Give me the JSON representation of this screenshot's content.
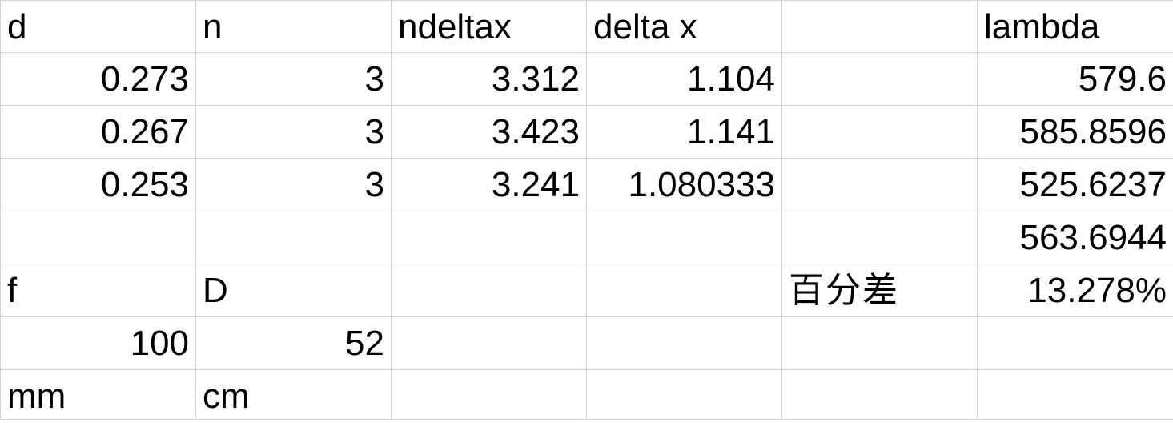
{
  "header": {
    "c1": "d",
    "c2": "n",
    "c3": "ndeltax",
    "c4": "delta x",
    "c5": "",
    "c6": "lambda"
  },
  "rows": [
    {
      "d": "0.273",
      "n": "3",
      "ndeltax": "3.312",
      "deltax": "1.104",
      "lambda": "579.6"
    },
    {
      "d": "0.267",
      "n": "3",
      "ndeltax": "3.423",
      "deltax": "1.141",
      "lambda": "585.8596"
    },
    {
      "d": "0.253",
      "n": "3",
      "ndeltax": "3.241",
      "deltax": "1.080333",
      "lambda": "525.6237"
    }
  ],
  "average": {
    "lambda": "563.6944"
  },
  "params": {
    "f_label": "f",
    "D_label": "D",
    "diff_label": "百分差",
    "diff_value": "13.278%",
    "f_value": "100",
    "D_value": "52",
    "f_unit": "mm",
    "D_unit": "cm"
  }
}
